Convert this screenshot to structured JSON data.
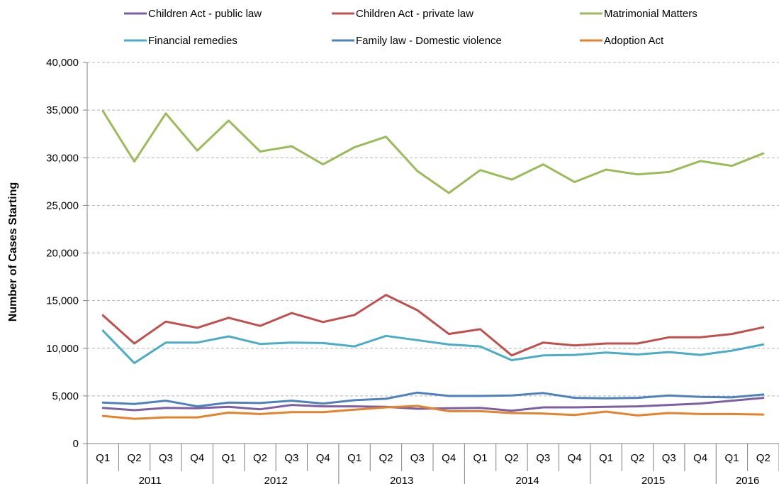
{
  "chart_data": {
    "type": "line",
    "ylabel": "Number of Cases Starting",
    "ylim": [
      0,
      40000
    ],
    "y_ticks": [
      "0",
      "5,000",
      "10,000",
      "15,000",
      "20,000",
      "25,000",
      "30,000",
      "35,000",
      "40,000"
    ],
    "y_tick_values": [
      0,
      5000,
      10000,
      15000,
      20000,
      25000,
      30000,
      35000,
      40000
    ],
    "categories": [
      "Q1",
      "Q2",
      "Q3",
      "Q4",
      "Q1",
      "Q2",
      "Q3",
      "Q4",
      "Q1",
      "Q2",
      "Q3",
      "Q4",
      "Q1",
      "Q2",
      "Q3",
      "Q4",
      "Q1",
      "Q2",
      "Q3",
      "Q4",
      "Q1",
      "Q2"
    ],
    "year_groups": [
      {
        "label": "2011",
        "count": 4
      },
      {
        "label": "2012",
        "count": 4
      },
      {
        "label": "2013",
        "count": 4
      },
      {
        "label": "2014",
        "count": 4
      },
      {
        "label": "2015",
        "count": 4
      },
      {
        "label": "2016",
        "count": 2
      }
    ],
    "grid": true,
    "legend_position": "top",
    "series": [
      {
        "name": "Children Act - public law",
        "color": "#7E5FA3",
        "values": [
          3750,
          3500,
          3750,
          3700,
          3850,
          3600,
          4050,
          3900,
          3900,
          3850,
          3650,
          3700,
          3750,
          3450,
          3800,
          3800,
          3850,
          3900,
          4050,
          4200,
          4500,
          4800
        ]
      },
      {
        "name": "Children Act - private law",
        "color": "#C0504D",
        "values": [
          13450,
          10500,
          12800,
          12150,
          13200,
          12350,
          13700,
          12750,
          13500,
          15600,
          14000,
          11500,
          12000,
          9250,
          10600,
          10300,
          10500,
          10500,
          11150,
          11150,
          11500,
          12200
        ]
      },
      {
        "name": "Matrimonial Matters",
        "color": "#9BBB59",
        "values": [
          34900,
          29600,
          34650,
          30750,
          33900,
          30650,
          31200,
          29300,
          31100,
          32200,
          28600,
          26300,
          28700,
          27700,
          29300,
          27450,
          28750,
          28250,
          28500,
          29650,
          29150,
          30450
        ]
      },
      {
        "name": "Financial remedies",
        "color": "#4BACC6",
        "values": [
          11850,
          8450,
          10600,
          10600,
          11250,
          10450,
          10600,
          10550,
          10200,
          11300,
          10850,
          10400,
          10200,
          8750,
          9250,
          9300,
          9550,
          9350,
          9600,
          9300,
          9750,
          10400
        ]
      },
      {
        "name": "Family law - Domestic violence",
        "color": "#4F81BD",
        "values": [
          4300,
          4150,
          4500,
          3900,
          4300,
          4250,
          4500,
          4200,
          4550,
          4700,
          5350,
          5000,
          5000,
          5050,
          5300,
          4800,
          4750,
          4800,
          5050,
          4900,
          4850,
          5150
        ]
      },
      {
        "name": "Adoption Act",
        "color": "#E3832E",
        "values": [
          2900,
          2600,
          2750,
          2750,
          3250,
          3100,
          3300,
          3300,
          3550,
          3800,
          3950,
          3400,
          3400,
          3200,
          3150,
          3000,
          3350,
          2950,
          3200,
          3100,
          3100,
          3050
        ]
      }
    ]
  }
}
